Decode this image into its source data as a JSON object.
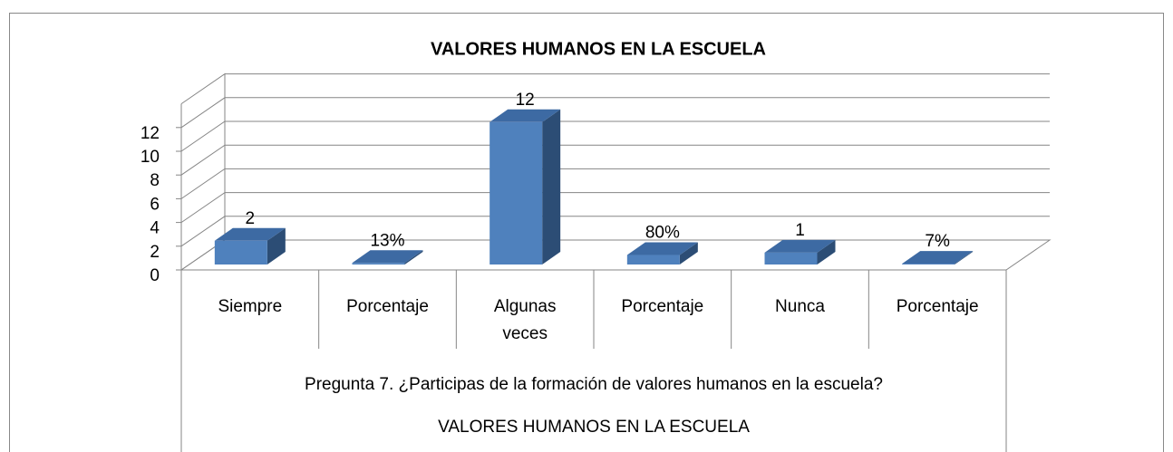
{
  "chart_data": {
    "type": "bar3d",
    "title": "VALORES HUMANOS EN LA ESCUELA",
    "categories": [
      "Siempre",
      "Porcentaje",
      "Algunas veces",
      "Porcentaje",
      "Nunca",
      "Porcentaje"
    ],
    "category_groups": [
      "Pregunta 7. ¿Participas de la formación de valores humanos en la escuela?",
      "VALORES HUMANOS EN LA ESCUELA"
    ],
    "values": [
      2,
      0.13,
      12,
      0.8,
      1,
      0.07
    ],
    "value_labels": [
      "2",
      "13%",
      "12",
      "80%",
      "1",
      "7%"
    ],
    "color": "#4f81bd",
    "ylim": [
      0,
      14
    ],
    "yticks": [
      0,
      2,
      4,
      6,
      8,
      10,
      12
    ],
    "grid": true
  }
}
